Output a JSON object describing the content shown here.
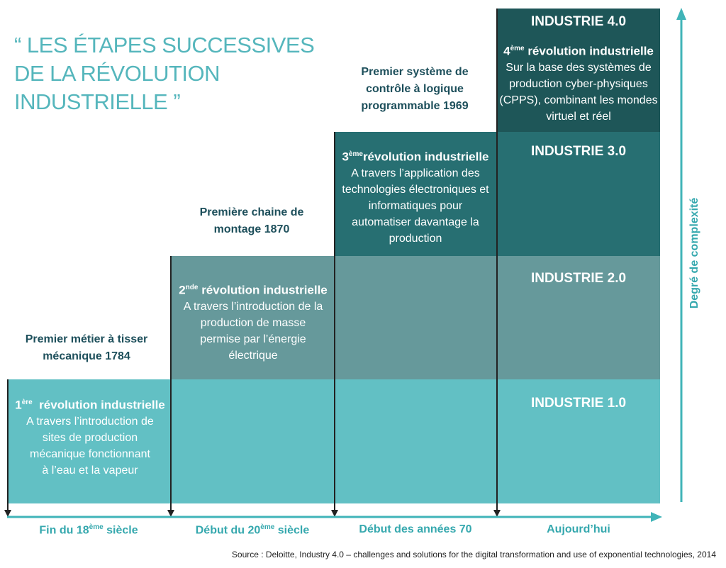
{
  "title": "“ LES ÉTAPES SUCCESSIVES DE LA RÉVOLUTION INDUSTRIELLE ”",
  "colors": {
    "industry1": "#62c0c4",
    "industry2": "#66999b",
    "industry3": "#276f72",
    "industry4": "#1e5658",
    "accent": "#35a8ae",
    "milestone_text": "#1d4f5b"
  },
  "stages": [
    {
      "industry_label": "INDUSTRIE 1.0",
      "ordinal": "1",
      "ordinal_sup": "ère",
      "revolution": "révolution industrielle",
      "description": "A travers  l’introduction de sites de production mécanique fonctionnant à l’eau et la vapeur",
      "milestone": "Premier métier à tisser mécanique 1784",
      "period": "Fin du 18",
      "period_sup": "ème",
      "period_suffix": " siècle"
    },
    {
      "industry_label": "INDUSTRIE 2.0",
      "ordinal": "2",
      "ordinal_sup": "nde",
      "revolution": "révolution industrielle",
      "description": "A travers  l’introduction de la production de masse permise par l’énergie électrique",
      "milestone": "Première chaine de montage 1870",
      "period": "Début du 20",
      "period_sup": "ème",
      "period_suffix": " siècle"
    },
    {
      "industry_label": "INDUSTRIE 3.0",
      "ordinal": "3",
      "ordinal_sup": "ème",
      "revolution": "révolution industrielle",
      "description": "A travers l’application  des technologies électroniques et informatiques  pour automatiser davantage  la production",
      "milestone": "Premier système de contrôle à logique programmable 1969",
      "period": "Début des années 70",
      "period_sup": "",
      "period_suffix": ""
    },
    {
      "industry_label": "INDUSTRIE 4.0",
      "ordinal": "4",
      "ordinal_sup": "ème",
      "revolution": "révolution industrielle",
      "description": "Sur la base des systèmes de production cyber-physiques (CPPS), combinant les mondes virtuel et réel",
      "milestone": "",
      "period": "Aujourd’hui",
      "period_sup": "",
      "period_suffix": ""
    }
  ],
  "y_axis_label": "Degré de complexité",
  "source": "Source : Deloitte, Industry 4.0 – challenges and solutions for the digital transformation and use of exponential technologies, 2014"
}
